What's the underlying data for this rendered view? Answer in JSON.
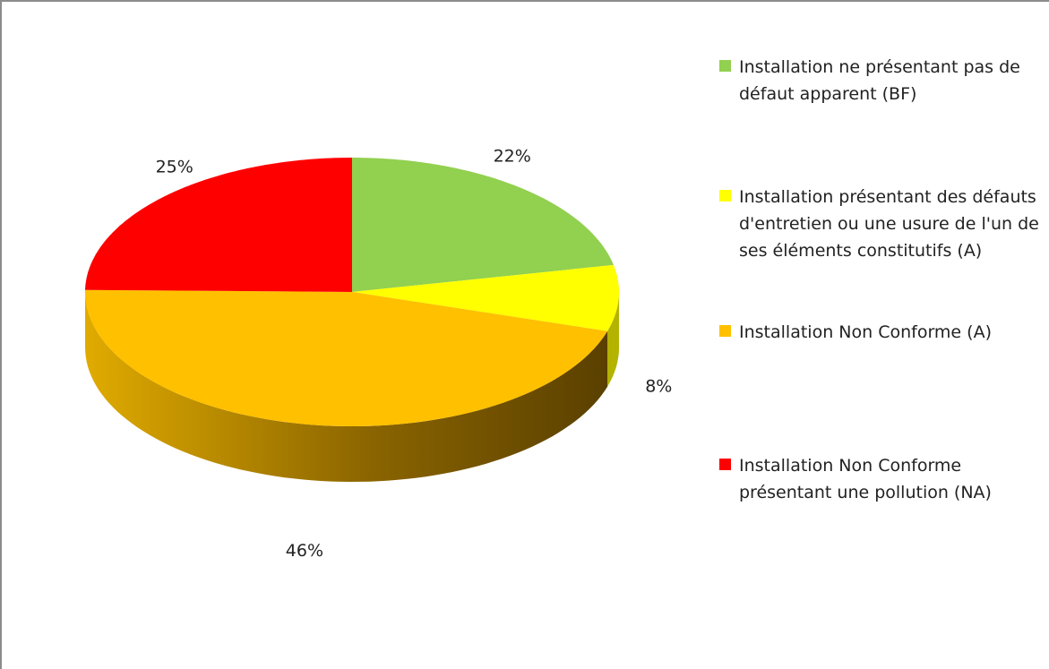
{
  "chart_data": {
    "type": "pie",
    "categories": [
      "Installation ne présentant pas de défaut apparent (BF)",
      "Installation présentant des défauts d'entretien ou une usure de l'un de ses éléments constitutifs (A)",
      "Installation Non Conforme (A)",
      "Installation Non Conforme présentant une pollution (NA)"
    ],
    "values": [
      22,
      8,
      46,
      25
    ],
    "value_labels": [
      "22%",
      "8%",
      "46%",
      "25%"
    ],
    "colors": [
      "#92d050",
      "#ffff00",
      "#ffc000",
      "#ff0000"
    ],
    "legend": "right"
  }
}
